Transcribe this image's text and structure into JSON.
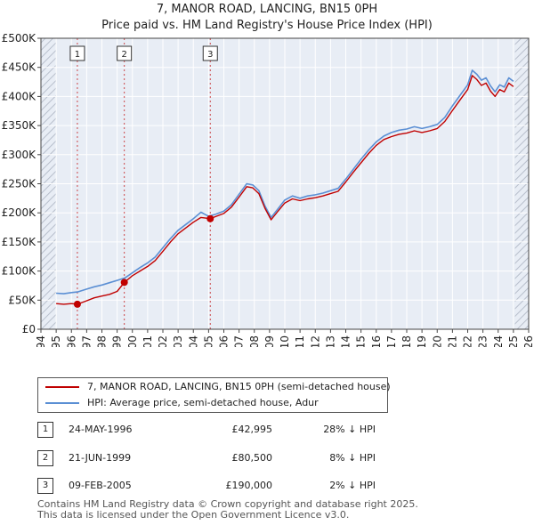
{
  "chart_data": {
    "type": "line",
    "title": "7, MANOR ROAD, LANCING, BN15 0PH",
    "subtitle": "Price paid vs. HM Land Registry's House Price Index (HPI)",
    "xlabel": "",
    "ylabel": "",
    "xlim": [
      1994,
      2026
    ],
    "ylim": [
      0,
      500000
    ],
    "x_ticks": [
      1994,
      1995,
      1996,
      1997,
      1998,
      1999,
      2000,
      2001,
      2002,
      2003,
      2004,
      2005,
      2006,
      2007,
      2008,
      2009,
      2010,
      2011,
      2012,
      2013,
      2014,
      2015,
      2016,
      2017,
      2018,
      2019,
      2020,
      2021,
      2022,
      2023,
      2024,
      2025,
      2026
    ],
    "y_ticks": [
      0,
      50000,
      100000,
      150000,
      200000,
      250000,
      300000,
      350000,
      400000,
      450000,
      500000
    ],
    "y_tick_labels": [
      "£0",
      "£50K",
      "£100K",
      "£150K",
      "£200K",
      "£250K",
      "£300K",
      "£350K",
      "£400K",
      "£450K",
      "£500K"
    ],
    "grid": true,
    "hatched_ranges": [
      [
        1994,
        1995
      ],
      [
        2025.1,
        2026
      ]
    ],
    "series": [
      {
        "name": "HPI: Average price, semi-detached house, Adur",
        "color": "#5b8fd4",
        "x": [
          1995.0,
          1995.5,
          1996.0,
          1996.4,
          1997.0,
          1997.5,
          1998.0,
          1998.5,
          1999.0,
          1999.5,
          2000.0,
          2000.5,
          2001.0,
          2001.5,
          2002.0,
          2002.5,
          2003.0,
          2003.5,
          2004.0,
          2004.5,
          2005.0,
          2005.5,
          2006.0,
          2006.5,
          2007.0,
          2007.5,
          2007.9,
          2008.3,
          2008.7,
          2009.1,
          2009.5,
          2010.0,
          2010.5,
          2011.0,
          2011.5,
          2012.0,
          2012.5,
          2013.0,
          2013.5,
          2014.0,
          2014.5,
          2015.0,
          2015.5,
          2016.0,
          2016.5,
          2017.0,
          2017.5,
          2018.0,
          2018.5,
          2019.0,
          2019.5,
          2020.0,
          2020.5,
          2021.0,
          2021.5,
          2022.0,
          2022.3,
          2022.6,
          2022.9,
          2023.2,
          2023.5,
          2023.8,
          2024.1,
          2024.4,
          2024.7,
          2025.0
        ],
        "values": [
          62000,
          61000,
          63000,
          64000,
          69000,
          73000,
          76000,
          80000,
          84000,
          88000,
          97000,
          106000,
          114000,
          124000,
          140000,
          156000,
          170000,
          180000,
          190000,
          201000,
          194000,
          198000,
          203000,
          214000,
          232000,
          250000,
          248000,
          238000,
          212000,
          192000,
          205000,
          222000,
          229000,
          225000,
          229000,
          231000,
          234000,
          238000,
          242000,
          258000,
          275000,
          292000,
          308000,
          322000,
          332000,
          338000,
          342000,
          344000,
          348000,
          345000,
          348000,
          352000,
          364000,
          384000,
          402000,
          420000,
          445000,
          438000,
          428000,
          432000,
          418000,
          408000,
          420000,
          416000,
          432000,
          426000
        ]
      },
      {
        "name": "7, MANOR ROAD, LANCING, BN15 0PH (semi-detached house)",
        "color": "#c00000",
        "x": [
          1995.0,
          1995.5,
          1996.0,
          1996.4,
          1997.0,
          1997.5,
          1998.0,
          1998.5,
          1999.0,
          1999.47,
          2000.0,
          2000.5,
          2001.0,
          2001.5,
          2002.0,
          2002.5,
          2003.0,
          2003.5,
          2004.0,
          2004.5,
          2005.11,
          2005.5,
          2006.0,
          2006.5,
          2007.0,
          2007.5,
          2007.9,
          2008.3,
          2008.7,
          2009.1,
          2009.5,
          2010.0,
          2010.5,
          2011.0,
          2011.5,
          2012.0,
          2012.5,
          2013.0,
          2013.5,
          2014.0,
          2014.5,
          2015.0,
          2015.5,
          2016.0,
          2016.5,
          2017.0,
          2017.5,
          2018.0,
          2018.5,
          2019.0,
          2019.5,
          2020.0,
          2020.5,
          2021.0,
          2021.5,
          2022.0,
          2022.3,
          2022.6,
          2022.9,
          2023.2,
          2023.5,
          2023.8,
          2024.1,
          2024.4,
          2024.7,
          2025.0
        ],
        "values": [
          44000,
          43000,
          44000,
          42995,
          49000,
          54000,
          57000,
          60000,
          65000,
          80500,
          92000,
          100000,
          108000,
          118000,
          134000,
          150000,
          164000,
          174000,
          184000,
          192000,
          190000,
          194000,
          199000,
          210000,
          227000,
          245000,
          243000,
          233000,
          208000,
          188000,
          201000,
          217000,
          224000,
          221000,
          224000,
          226000,
          229000,
          233000,
          237000,
          253000,
          270000,
          286000,
          302000,
          316000,
          326000,
          331000,
          335000,
          337000,
          341000,
          338000,
          341000,
          345000,
          357000,
          376000,
          394000,
          412000,
          436000,
          429000,
          419000,
          423000,
          409000,
          400000,
          412000,
          408000,
          423000,
          417000
        ]
      }
    ],
    "transactions": [
      {
        "marker": "1",
        "x": 1996.39,
        "date": "24-MAY-1996",
        "price": 42995,
        "price_label": "£42,995",
        "hpi_label": "28% ↓ HPI"
      },
      {
        "marker": "2",
        "x": 1999.47,
        "date": "21-JUN-1999",
        "price": 80500,
        "price_label": "£80,500",
        "hpi_label": "8% ↓ HPI"
      },
      {
        "marker": "3",
        "x": 2005.11,
        "date": "09-FEB-2005",
        "price": 190000,
        "price_label": "£190,000",
        "hpi_label": "2% ↓ HPI"
      }
    ]
  },
  "legend": {
    "property_label": "7, MANOR ROAD, LANCING, BN15 0PH (semi-detached house)",
    "hpi_label": "HPI: Average price, semi-detached house, Adur"
  },
  "footer": {
    "line1": "Contains HM Land Registry data © Crown copyright and database right 2025.",
    "line2": "This data is licensed under the Open Government Licence v3.0."
  },
  "colors": {
    "property": "#c00000",
    "hpi": "#5b8fd4",
    "plot_bg": "#e8edf5",
    "grid": "#ffffff"
  }
}
